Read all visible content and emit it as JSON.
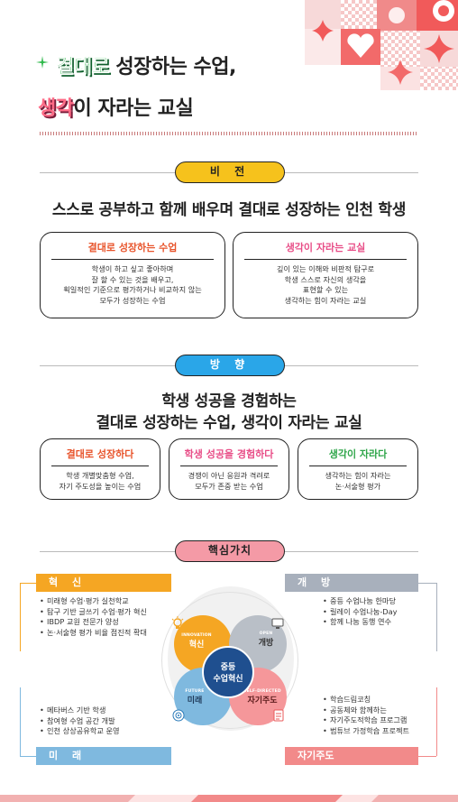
{
  "title": {
    "line1_highlight": "결대로",
    "line1_rest": " 성장하는 수업,",
    "line2_highlight": "생각",
    "line2_rest": "이 자라는 교실"
  },
  "vision": {
    "label": "비 전",
    "headline": "스스로 공부하고 함께 배우며 결대로 성장하는 인천 학생",
    "cards": [
      {
        "title": "결대로 성장하는 수업",
        "lines": [
          "학생이 하고 싶고 좋아하며",
          "잘 할 수 있는 것을 배우고,",
          "획일적인 기준으로 평가하거나 비교하지 않는",
          "모두가 성장하는 수업"
        ]
      },
      {
        "title": "생각이 자라는 교실",
        "lines": [
          "깊이 있는 이해와 비판적 탐구로",
          "학생 스스로 자신의 생각을",
          "표현할 수 있는",
          "생각하는 힘이 자라는 교실"
        ]
      }
    ]
  },
  "direction": {
    "label": "방 향",
    "headline_line1": "학생 성공을 경험하는",
    "headline_line2": "결대로 성장하는 수업, 생각이 자라는 교실",
    "cards": [
      {
        "title": "결대로 성장하다",
        "lines": [
          "학생 개별맞춤형 수업,",
          "자기 주도성을 높이는 수업"
        ]
      },
      {
        "title": "학생 성공을 경험하다",
        "lines": [
          "경쟁이 아닌 응원과 격려로",
          "모두가 존중 받는 수업"
        ]
      },
      {
        "title": "생각이 자라다",
        "lines": [
          "생각하는 힘이 자라는",
          "논·서술형 평가"
        ]
      }
    ]
  },
  "core": {
    "label": "핵심가치",
    "center_line1": "중등",
    "center_line2": "수업혁신",
    "innovation": {
      "head": "혁 신",
      "en": "INNOVATION",
      "ko": "혁신",
      "items": [
        "미래형 수업·평가 실천학교",
        "탐구 기반 글쓰기 수업·평가 혁신",
        "IBDP 교원 전문가 양성",
        "논·서술형 평가 비율 점진적 확대"
      ]
    },
    "open": {
      "head": "개 방",
      "en": "OPEN",
      "ko": "개방",
      "items": [
        "중등 수업나눔 한마당",
        "릴레이 수업나눔-Day",
        "함께 나눔 동행 연수"
      ]
    },
    "future": {
      "head": "미 래",
      "en": "FUTURE",
      "ko": "미래",
      "items": [
        "메타버스 기반 학생",
        "참여형 수업 공간 개발",
        "인천 상상공유학교 운영"
      ]
    },
    "self": {
      "head": "자기주도",
      "en": "SELF-DIRECTED",
      "ko": "자기주도",
      "items": [
        "학습드림코칭",
        "공동체와 함께하는",
        "자기주도적학습 프로그램",
        "범튜브 가정학습 프로젝트"
      ]
    }
  },
  "colors": {
    "yellow": "#f6c21c",
    "blue": "#2aa6e8",
    "pink": "#f49aa6",
    "orange": "#f5a623",
    "gray": "#a8b0bc",
    "lightblue": "#7fb9df",
    "salmon": "#f28a8a",
    "navy": "#1f4f8f"
  }
}
